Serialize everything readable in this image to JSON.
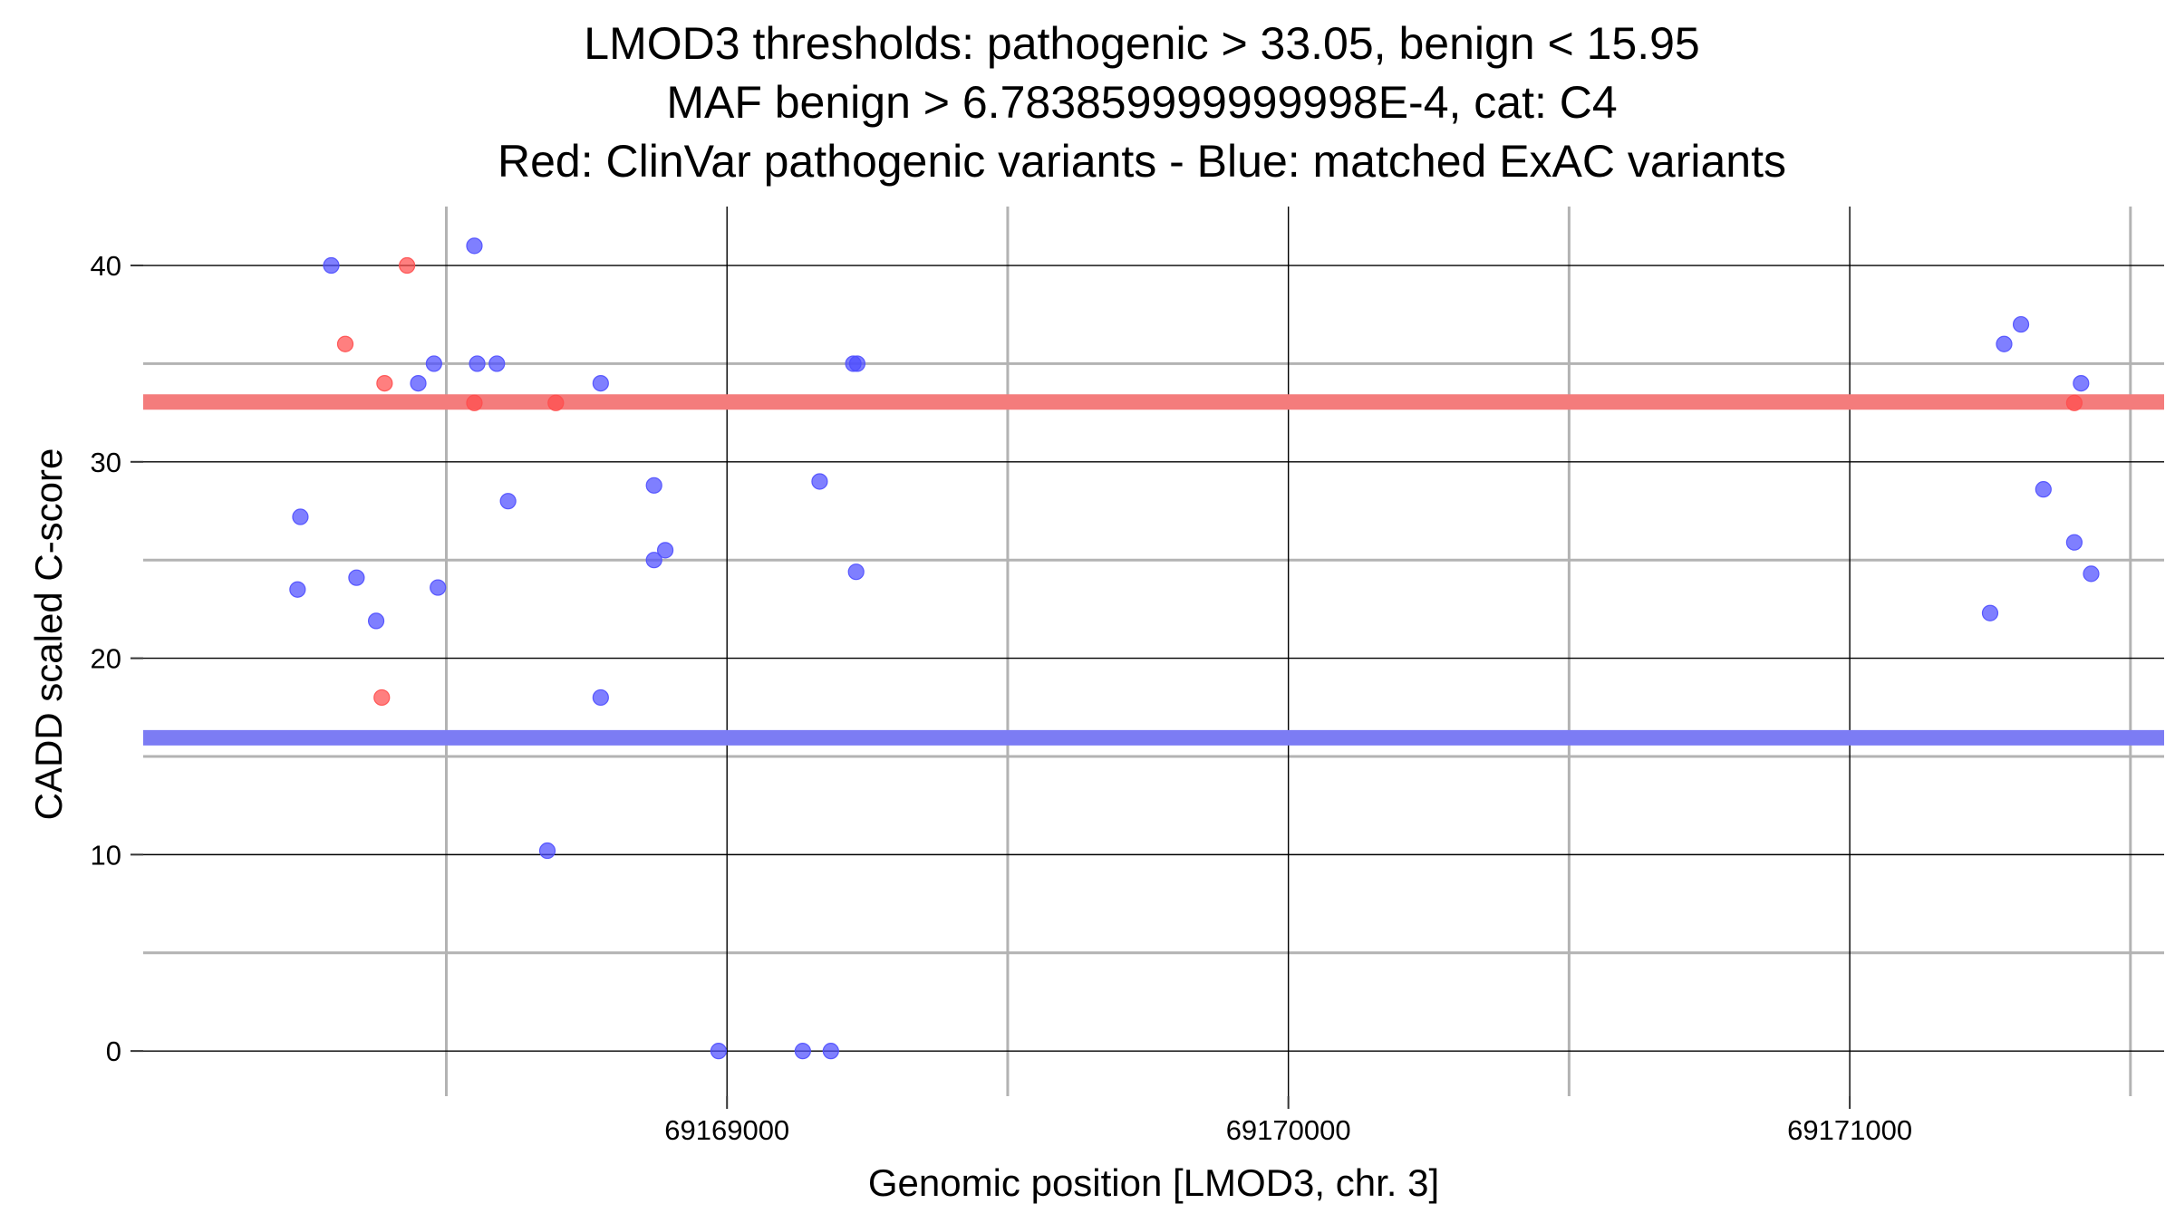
{
  "chart_data": {
    "type": "scatter",
    "title_lines": [
      "LMOD3 thresholds: pathogenic > 33.05, benign < 15.95",
      "MAF benign > 6.783859999999998E-4, cat: C4",
      "Red: ClinVar pathogenic variants - Blue: matched ExAC variants"
    ],
    "xlabel": "Genomic position [LMOD3, chr. 3]",
    "ylabel": "CADD scaled C-score",
    "xlim": [
      69167960,
      69171560
    ],
    "ylim": [
      -2.3,
      43
    ],
    "x_ticks": [
      69169000,
      69170000,
      69171000
    ],
    "x_tick_labels": [
      "69169000",
      "69170000",
      "69171000"
    ],
    "x_minor_ticks": [
      69168500,
      69169500,
      69170500,
      69171500
    ],
    "y_ticks": [
      0,
      10,
      20,
      30,
      40
    ],
    "y_tick_labels": [
      "0",
      "10",
      "20",
      "30",
      "40"
    ],
    "y_minor_ticks": [
      5,
      15,
      25,
      35
    ],
    "grid": true,
    "thresholds": [
      {
        "name": "pathogenic",
        "value": 33.05,
        "color": "#f47c7c"
      },
      {
        "name": "benign",
        "value": 15.95,
        "color": "#7c7cf4"
      }
    ],
    "colors": {
      "pathogenic_point": "#ff4d4d",
      "benign_point": "#4d4dff",
      "major_grid": "#000000",
      "minor_grid": "#b3b3b3"
    },
    "series": [
      {
        "group": "ClinVar pathogenic",
        "color": "#ff4d4d",
        "points": [
          {
            "x": 69168320,
            "y": 36
          },
          {
            "x": 69168430,
            "y": 40
          },
          {
            "x": 69168390,
            "y": 34
          },
          {
            "x": 69168385,
            "y": 18
          },
          {
            "x": 69168550,
            "y": 33
          },
          {
            "x": 69168695,
            "y": 33
          },
          {
            "x": 69171400,
            "y": 33
          }
        ]
      },
      {
        "group": "matched ExAC",
        "color": "#4d4dff",
        "points": [
          {
            "x": 69168235,
            "y": 23.5
          },
          {
            "x": 69168240,
            "y": 27.2
          },
          {
            "x": 69168295,
            "y": 40
          },
          {
            "x": 69168340,
            "y": 24.1
          },
          {
            "x": 69168375,
            "y": 21.9
          },
          {
            "x": 69168450,
            "y": 34
          },
          {
            "x": 69168478,
            "y": 35
          },
          {
            "x": 69168485,
            "y": 23.6
          },
          {
            "x": 69168550,
            "y": 41
          },
          {
            "x": 69168555,
            "y": 35
          },
          {
            "x": 69168590,
            "y": 35
          },
          {
            "x": 69168610,
            "y": 28
          },
          {
            "x": 69168680,
            "y": 10.2
          },
          {
            "x": 69168775,
            "y": 34
          },
          {
            "x": 69168775,
            "y": 18
          },
          {
            "x": 69168870,
            "y": 28.8
          },
          {
            "x": 69168870,
            "y": 25
          },
          {
            "x": 69168890,
            "y": 25.5
          },
          {
            "x": 69168985,
            "y": 0
          },
          {
            "x": 69169135,
            "y": 0
          },
          {
            "x": 69169165,
            "y": 29
          },
          {
            "x": 69169185,
            "y": 0
          },
          {
            "x": 69169225,
            "y": 35
          },
          {
            "x": 69169232,
            "y": 35
          },
          {
            "x": 69169230,
            "y": 24.4
          },
          {
            "x": 69171250,
            "y": 22.3
          },
          {
            "x": 69171275,
            "y": 36
          },
          {
            "x": 69171305,
            "y": 37
          },
          {
            "x": 69171345,
            "y": 28.6
          },
          {
            "x": 69171400,
            "y": 25.9
          },
          {
            "x": 69171412,
            "y": 34
          },
          {
            "x": 69171430,
            "y": 24.3
          }
        ]
      }
    ]
  }
}
